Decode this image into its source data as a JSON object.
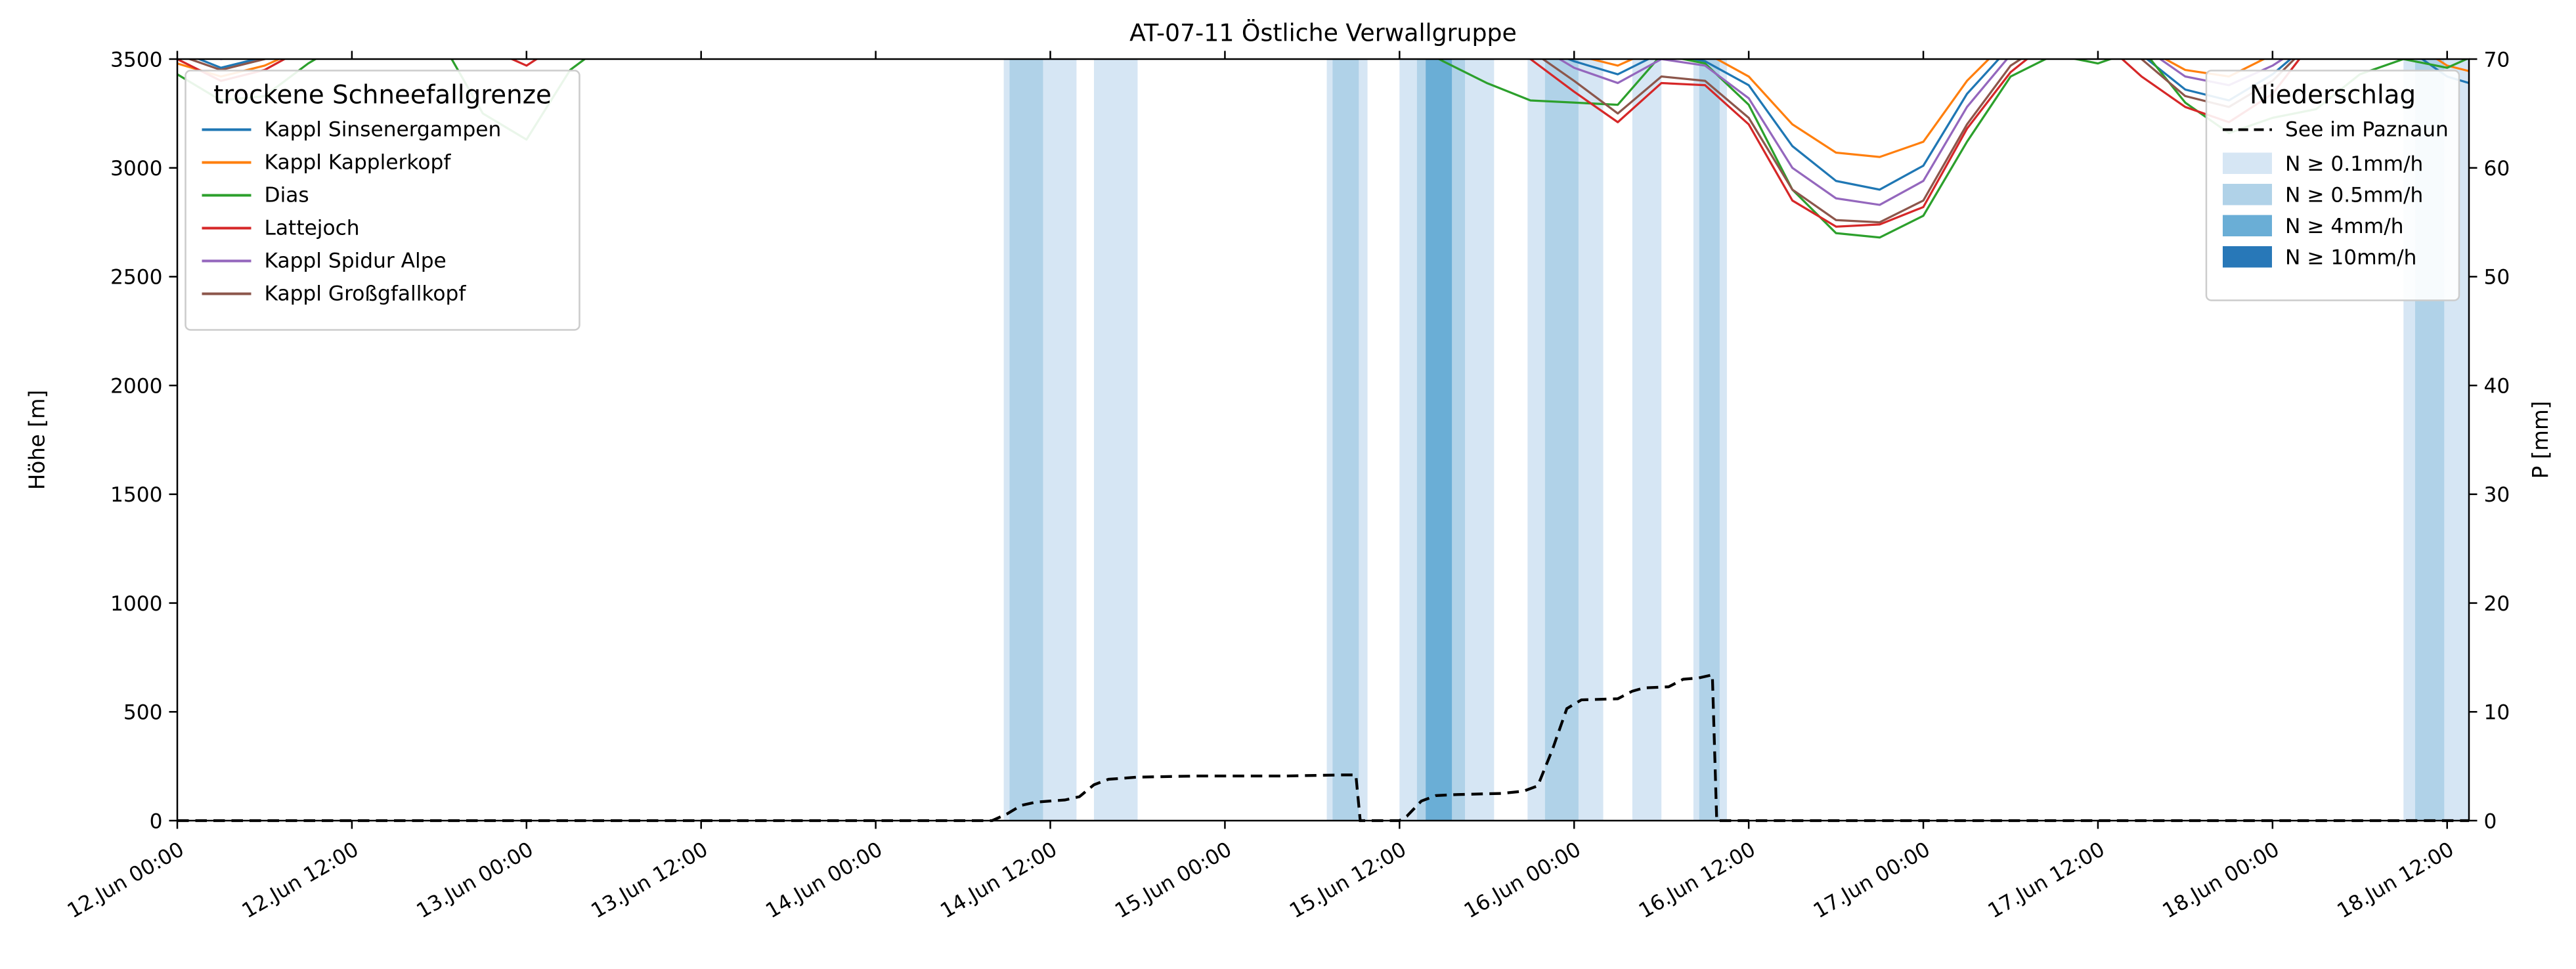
{
  "title": "AT-07-11 Östliche Verwallgruppe",
  "chart_data": {
    "type": "line",
    "title": "AT-07-11 Östliche Verwallgruppe",
    "x_unit": "hours since 12 Jun 00:00",
    "x_range": [
      0,
      157.5
    ],
    "x_tick_hours": [
      0,
      12,
      24,
      36,
      48,
      60,
      72,
      84,
      96,
      108,
      120,
      132,
      144,
      156
    ],
    "x_tick_labels": [
      "12.Jun 00:00",
      "12.Jun 12:00",
      "13.Jun 00:00",
      "13.Jun 12:00",
      "14.Jun 00:00",
      "14.Jun 12:00",
      "15.Jun 00:00",
      "15.Jun 12:00",
      "16.Jun 00:00",
      "16.Jun 12:00",
      "17.Jun 00:00",
      "17.Jun 12:00",
      "18.Jun 00:00",
      "18.Jun 12:00"
    ],
    "y_left": {
      "label": "Höhe [m]",
      "range": [
        0,
        3500
      ],
      "ticks": [
        0,
        500,
        1000,
        1500,
        2000,
        2500,
        3000,
        3500
      ]
    },
    "y_right": {
      "label": "P [mm]",
      "range": [
        0,
        70
      ],
      "ticks": [
        0,
        10,
        20,
        30,
        40,
        50,
        60,
        70
      ]
    },
    "grid": false,
    "snowline_legend_title": "trockene Schneefallgrenze",
    "sample_hours": [
      0,
      3,
      6,
      9,
      12,
      15,
      18,
      21,
      24,
      27,
      30,
      33,
      36,
      39,
      42,
      45,
      48,
      51,
      54,
      57,
      60,
      63,
      66,
      69,
      72,
      75,
      78,
      81,
      84,
      87,
      90,
      93,
      96,
      99,
      102,
      105,
      108,
      111,
      114,
      117,
      120,
      123,
      126,
      129,
      132,
      135,
      138,
      141,
      144,
      147,
      150,
      153,
      156,
      159
    ],
    "series": [
      {
        "name": "Kappl Sinsenergampen",
        "color": "#1f77b4",
        "values": [
          3540,
          3460,
          3510,
          3580,
          3600,
          3600,
          3600,
          3600,
          3600,
          3600,
          3600,
          3600,
          3600,
          3600,
          3600,
          3600,
          3600,
          3600,
          3600,
          3600,
          3600,
          3600,
          3600,
          3600,
          3600,
          3600,
          3600,
          3600,
          3600,
          3600,
          3600,
          3570,
          3490,
          3430,
          3530,
          3490,
          3380,
          3100,
          2940,
          2900,
          3010,
          3340,
          3560,
          3600,
          3600,
          3520,
          3360,
          3310,
          3430,
          3600,
          3600,
          3560,
          3420,
          3360
        ]
      },
      {
        "name": "Kappl Kapplerkopf",
        "color": "#ff7f0e",
        "values": [
          3480,
          3420,
          3470,
          3560,
          3600,
          3600,
          3600,
          3600,
          3600,
          3600,
          3600,
          3600,
          3600,
          3600,
          3600,
          3600,
          3600,
          3600,
          3600,
          3600,
          3600,
          3600,
          3600,
          3600,
          3600,
          3600,
          3600,
          3600,
          3600,
          3600,
          3600,
          3600,
          3520,
          3470,
          3560,
          3530,
          3420,
          3200,
          3070,
          3050,
          3120,
          3400,
          3600,
          3600,
          3600,
          3560,
          3450,
          3420,
          3520,
          3600,
          3600,
          3600,
          3470,
          3420
        ]
      },
      {
        "name": "Dias",
        "color": "#2ca02c",
        "values": [
          3430,
          3310,
          3330,
          3480,
          3600,
          3600,
          3600,
          3250,
          3130,
          3450,
          3600,
          3600,
          3600,
          3600,
          3600,
          3600,
          3600,
          3600,
          3600,
          3600,
          3600,
          3600,
          3600,
          3600,
          3600,
          3600,
          3600,
          3600,
          3600,
          3490,
          3390,
          3310,
          3300,
          3290,
          3520,
          3480,
          3290,
          2900,
          2700,
          2680,
          2780,
          3120,
          3420,
          3520,
          3480,
          3550,
          3300,
          3160,
          3230,
          3270,
          3430,
          3500,
          3460,
          3550
        ]
      },
      {
        "name": "Lattejoch",
        "color": "#d62728",
        "values": [
          3500,
          3400,
          3450,
          3560,
          3600,
          3600,
          3600,
          3560,
          3470,
          3600,
          3600,
          3600,
          3600,
          3600,
          3600,
          3600,
          3600,
          3600,
          3600,
          3600,
          3600,
          3600,
          3600,
          3600,
          3600,
          3600,
          3600,
          3600,
          3600,
          3600,
          3600,
          3500,
          3350,
          3210,
          3390,
          3380,
          3200,
          2850,
          2730,
          2740,
          2820,
          3180,
          3440,
          3600,
          3600,
          3420,
          3280,
          3210,
          3340,
          3600,
          3600,
          3600,
          3530,
          3490
        ]
      },
      {
        "name": "Kappl Spidur Alpe",
        "color": "#9467bd",
        "values": [
          3560,
          3500,
          3540,
          3600,
          3600,
          3600,
          3600,
          3600,
          3600,
          3600,
          3600,
          3600,
          3600,
          3600,
          3600,
          3600,
          3600,
          3600,
          3600,
          3600,
          3600,
          3600,
          3600,
          3600,
          3600,
          3600,
          3600,
          3600,
          3600,
          3600,
          3600,
          3580,
          3460,
          3390,
          3500,
          3470,
          3320,
          3000,
          2860,
          2830,
          2940,
          3280,
          3520,
          3600,
          3600,
          3560,
          3420,
          3380,
          3470,
          3600,
          3600,
          3600,
          3600,
          3600
        ]
      },
      {
        "name": "Kappl Großgfallkopf",
        "color": "#8c564b",
        "values": [
          3520,
          3450,
          3500,
          3600,
          3600,
          3600,
          3600,
          3600,
          3600,
          3600,
          3600,
          3600,
          3600,
          3600,
          3600,
          3600,
          3600,
          3600,
          3600,
          3600,
          3600,
          3600,
          3600,
          3600,
          3600,
          3600,
          3600,
          3600,
          3600,
          3600,
          3600,
          3540,
          3400,
          3250,
          3420,
          3400,
          3230,
          2900,
          2760,
          2750,
          2850,
          3200,
          3470,
          3600,
          3600,
          3500,
          3330,
          3280,
          3400,
          3600,
          3600,
          3600,
          3600,
          3600
        ]
      }
    ],
    "precip_line": {
      "name": "See im Paznaun",
      "color": "#000000",
      "style": "dashed",
      "axis": "right",
      "x": [
        0,
        56,
        57,
        58,
        59,
        60,
        61,
        62,
        63,
        64,
        65,
        66,
        70,
        76,
        80,
        81,
        81.3,
        84,
        84.5,
        85.5,
        86.5,
        88,
        91,
        92.5,
        93.5,
        94.5,
        95.5,
        96.5,
        99,
        100,
        100.8,
        102.5,
        103.5,
        104.5,
        105.5,
        105.8,
        157.5
      ],
      "values": [
        0,
        0,
        0.6,
        1.4,
        1.7,
        1.8,
        1.9,
        2.2,
        3.3,
        3.8,
        3.9,
        4.0,
        4.1,
        4.1,
        4.2,
        4.2,
        0,
        0,
        0.4,
        1.8,
        2.3,
        2.4,
        2.5,
        2.7,
        3.2,
        6.5,
        10.3,
        11.1,
        11.2,
        11.9,
        12.2,
        12.3,
        13.0,
        13.1,
        13.4,
        0,
        0
      ]
    },
    "precip_bands": {
      "legend_title": "Niederschlag",
      "levels": [
        {
          "level": "0.1",
          "label": "N ≥ 0.1mm/h",
          "color": "#d6e6f4"
        },
        {
          "level": "0.5",
          "label": "N ≥ 0.5mm/h",
          "color": "#b0d2e8"
        },
        {
          "level": "4",
          "label": "N ≥ 4mm/h",
          "color": "#6aaed6"
        },
        {
          "level": "10",
          "label": "N ≥ 10mm/h",
          "color": "#2878b8"
        }
      ],
      "bands": [
        {
          "start": 56.8,
          "end": 61.8,
          "level": "0.1"
        },
        {
          "start": 57.2,
          "end": 59.5,
          "level": "0.5"
        },
        {
          "start": 63.0,
          "end": 66.0,
          "level": "0.1"
        },
        {
          "start": 79.0,
          "end": 81.8,
          "level": "0.1"
        },
        {
          "start": 79.4,
          "end": 81.2,
          "level": "0.5"
        },
        {
          "start": 84.0,
          "end": 90.5,
          "level": "0.1"
        },
        {
          "start": 85.2,
          "end": 88.5,
          "level": "0.5"
        },
        {
          "start": 85.8,
          "end": 87.6,
          "level": "4"
        },
        {
          "start": 92.8,
          "end": 98.0,
          "level": "0.1"
        },
        {
          "start": 94.0,
          "end": 96.3,
          "level": "0.5"
        },
        {
          "start": 100.0,
          "end": 102.0,
          "level": "0.1"
        },
        {
          "start": 104.2,
          "end": 106.5,
          "level": "0.1"
        },
        {
          "start": 104.6,
          "end": 106.0,
          "level": "0.5"
        },
        {
          "start": 153.0,
          "end": 157.5,
          "level": "0.1"
        },
        {
          "start": 153.8,
          "end": 155.8,
          "level": "0.5"
        }
      ]
    },
    "colors": {
      "spine": "#000000",
      "background": "#ffffff",
      "legend_edge": "#cccccc"
    }
  }
}
